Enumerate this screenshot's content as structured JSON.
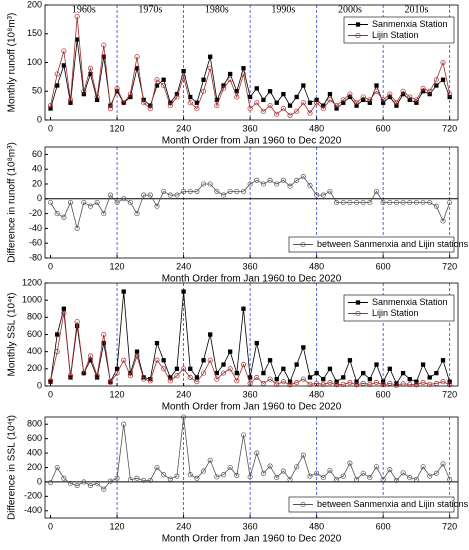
{
  "chart_data": [
    {
      "type": "line",
      "ylabel": "Monthly runoff (10⁸m³)",
      "xlabel": "Month Order from Jan 1960 to Dec 2020",
      "annotations": [
        "1960s",
        "1970s",
        "1980s",
        "1990s",
        "2000s",
        "2010s"
      ],
      "xlim": [
        -10,
        735
      ],
      "xticks": [
        0,
        120,
        240,
        360,
        480,
        600,
        720
      ],
      "vlines": [
        120,
        240,
        360,
        480,
        600,
        720
      ],
      "ylim": [
        0,
        200
      ],
      "yticks": [
        0,
        50,
        100,
        150,
        200
      ],
      "legend": "upper right",
      "zero_line": false,
      "x": [
        0,
        12,
        24,
        36,
        48,
        60,
        72,
        84,
        96,
        108,
        120,
        132,
        144,
        156,
        168,
        180,
        192,
        204,
        216,
        228,
        240,
        252,
        264,
        276,
        288,
        300,
        312,
        324,
        336,
        348,
        360,
        372,
        384,
        396,
        408,
        420,
        432,
        444,
        456,
        468,
        480,
        492,
        504,
        516,
        528,
        540,
        552,
        564,
        576,
        588,
        600,
        612,
        624,
        636,
        648,
        660,
        672,
        684,
        696,
        708,
        720
      ],
      "series": [
        {
          "name": "Sanmenxia Station",
          "color": "#000000",
          "marker": "square",
          "values": [
            20,
            60,
            95,
            30,
            140,
            45,
            80,
            35,
            110,
            25,
            50,
            30,
            40,
            90,
            35,
            25,
            60,
            70,
            30,
            45,
            85,
            40,
            30,
            70,
            110,
            35,
            60,
            80,
            50,
            90,
            40,
            55,
            35,
            50,
            30,
            45,
            25,
            40,
            60,
            30,
            35,
            25,
            45,
            20,
            30,
            40,
            25,
            35,
            30,
            60,
            30,
            40,
            25,
            45,
            35,
            30,
            50,
            45,
            60,
            70,
            40
          ]
        },
        {
          "name": "Lijin Station",
          "color": "#a52a2a",
          "marker": "circle",
          "values": [
            25,
            80,
            120,
            35,
            180,
            50,
            90,
            40,
            130,
            20,
            55,
            30,
            45,
            110,
            30,
            20,
            70,
            60,
            25,
            40,
            75,
            30,
            20,
            50,
            90,
            25,
            55,
            70,
            40,
            80,
            20,
            30,
            15,
            25,
            10,
            20,
            8,
            15,
            30,
            12,
            30,
            20,
            35,
            25,
            35,
            45,
            30,
            40,
            35,
            50,
            35,
            45,
            30,
            50,
            40,
            35,
            55,
            50,
            70,
            100,
            45
          ]
        }
      ]
    },
    {
      "type": "line",
      "ylabel": "Difference in runoff (10⁸m³)",
      "xlabel": "Month Order from Jan 1960 to Dec 2020",
      "xlim": [
        -10,
        735
      ],
      "xticks": [
        0,
        120,
        240,
        360,
        480,
        600,
        720
      ],
      "vlines": [
        120,
        240,
        360,
        480,
        600,
        720
      ],
      "ylim": [
        -80,
        70
      ],
      "yticks": [
        -80,
        -60,
        -40,
        -20,
        0,
        20,
        40,
        60
      ],
      "legend": "lower right",
      "zero_line": true,
      "x": [
        0,
        12,
        24,
        36,
        48,
        60,
        72,
        84,
        96,
        108,
        120,
        132,
        144,
        156,
        168,
        180,
        192,
        204,
        216,
        228,
        240,
        252,
        264,
        276,
        288,
        300,
        312,
        324,
        336,
        348,
        360,
        372,
        384,
        396,
        408,
        420,
        432,
        444,
        456,
        468,
        480,
        492,
        504,
        516,
        528,
        540,
        552,
        564,
        576,
        588,
        600,
        612,
        624,
        636,
        648,
        660,
        672,
        684,
        696,
        708,
        720
      ],
      "series": [
        {
          "name": "between Sanmenxia and Lijin stations",
          "color": "#555555",
          "marker": "circle",
          "values": [
            -5,
            -20,
            -25,
            -5,
            -40,
            -5,
            -10,
            -5,
            -20,
            5,
            -5,
            0,
            -5,
            -20,
            5,
            5,
            -10,
            10,
            5,
            5,
            10,
            10,
            10,
            20,
            20,
            10,
            5,
            10,
            10,
            10,
            20,
            25,
            20,
            25,
            20,
            25,
            17,
            25,
            30,
            18,
            5,
            5,
            10,
            -5,
            -5,
            -5,
            -5,
            -5,
            -5,
            10,
            -5,
            -5,
            -5,
            -5,
            -5,
            -5,
            -5,
            -5,
            -10,
            -30,
            -5
          ]
        }
      ]
    },
    {
      "type": "line",
      "ylabel": "Monthly SSL (10⁴t)",
      "xlabel": "Month Order from Jan 1960 to Dec 2020",
      "xlim": [
        -10,
        735
      ],
      "xticks": [
        0,
        120,
        240,
        360,
        480,
        600,
        720
      ],
      "vlines": [
        120,
        240,
        360,
        480,
        600,
        720
      ],
      "ylim": [
        0,
        1200
      ],
      "yticks": [
        0,
        200,
        400,
        600,
        800,
        1000,
        1200
      ],
      "legend": "upper right",
      "zero_line": false,
      "x": [
        0,
        12,
        24,
        36,
        48,
        60,
        72,
        84,
        96,
        108,
        120,
        132,
        144,
        156,
        168,
        180,
        192,
        204,
        216,
        228,
        240,
        252,
        264,
        276,
        288,
        300,
        312,
        324,
        336,
        348,
        360,
        372,
        384,
        396,
        408,
        420,
        432,
        444,
        456,
        468,
        480,
        492,
        504,
        516,
        528,
        540,
        552,
        564,
        576,
        588,
        600,
        612,
        624,
        636,
        648,
        660,
        672,
        684,
        696,
        708,
        720
      ],
      "series": [
        {
          "name": "Sanmenxia Station",
          "color": "#000000",
          "marker": "square",
          "values": [
            50,
            600,
            900,
            100,
            700,
            150,
            300,
            100,
            500,
            50,
            200,
            1100,
            150,
            400,
            100,
            80,
            500,
            300,
            100,
            200,
            1100,
            200,
            100,
            300,
            600,
            150,
            250,
            400,
            150,
            900,
            100,
            500,
            150,
            300,
            80,
            200,
            50,
            250,
            450,
            100,
            150,
            80,
            200,
            50,
            100,
            300,
            50,
            150,
            80,
            250,
            50,
            200,
            30,
            150,
            80,
            50,
            250,
            100,
            150,
            300,
            50
          ]
        },
        {
          "name": "Lijin Station",
          "color": "#a52a2a",
          "marker": "circle",
          "values": [
            60,
            400,
            850,
            120,
            750,
            150,
            350,
            120,
            600,
            40,
            150,
            300,
            120,
            350,
            80,
            60,
            300,
            200,
            60,
            120,
            200,
            100,
            50,
            150,
            300,
            80,
            150,
            200,
            60,
            250,
            30,
            100,
            30,
            80,
            20,
            50,
            15,
            40,
            80,
            20,
            30,
            20,
            40,
            15,
            20,
            40,
            15,
            30,
            20,
            40,
            15,
            30,
            10,
            25,
            20,
            15,
            40,
            20,
            30,
            50,
            15
          ]
        }
      ]
    },
    {
      "type": "line",
      "ylabel": "Difference in SSL (10⁴t)",
      "xlabel": "Month Order from Jan 1960 to Dec 2020",
      "xlim": [
        -10,
        735
      ],
      "xticks": [
        0,
        120,
        240,
        360,
        480,
        600,
        720
      ],
      "vlines": [
        120,
        240,
        360,
        480,
        600,
        720
      ],
      "ylim": [
        -500,
        900
      ],
      "yticks": [
        -400,
        -200,
        0,
        200,
        400,
        600,
        800
      ],
      "legend": "lower right",
      "zero_line": true,
      "x": [
        0,
        12,
        24,
        36,
        48,
        60,
        72,
        84,
        96,
        108,
        120,
        132,
        144,
        156,
        168,
        180,
        192,
        204,
        216,
        228,
        240,
        252,
        264,
        276,
        288,
        300,
        312,
        324,
        336,
        348,
        360,
        372,
        384,
        396,
        408,
        420,
        432,
        444,
        456,
        468,
        480,
        492,
        504,
        516,
        528,
        540,
        552,
        564,
        576,
        588,
        600,
        612,
        624,
        636,
        648,
        660,
        672,
        684,
        696,
        708,
        720
      ],
      "series": [
        {
          "name": "between Sanmenxia and Lijin stations",
          "color": "#555555",
          "marker": "circle",
          "values": [
            -10,
            200,
            50,
            -20,
            -50,
            0,
            -50,
            -20,
            -100,
            10,
            50,
            800,
            30,
            50,
            20,
            20,
            200,
            100,
            40,
            80,
            900,
            100,
            50,
            150,
            300,
            70,
            100,
            200,
            90,
            650,
            70,
            400,
            120,
            220,
            60,
            150,
            35,
            210,
            370,
            80,
            120,
            60,
            160,
            35,
            80,
            260,
            35,
            120,
            60,
            210,
            35,
            170,
            20,
            125,
            60,
            35,
            210,
            80,
            120,
            250,
            35
          ]
        }
      ]
    }
  ]
}
